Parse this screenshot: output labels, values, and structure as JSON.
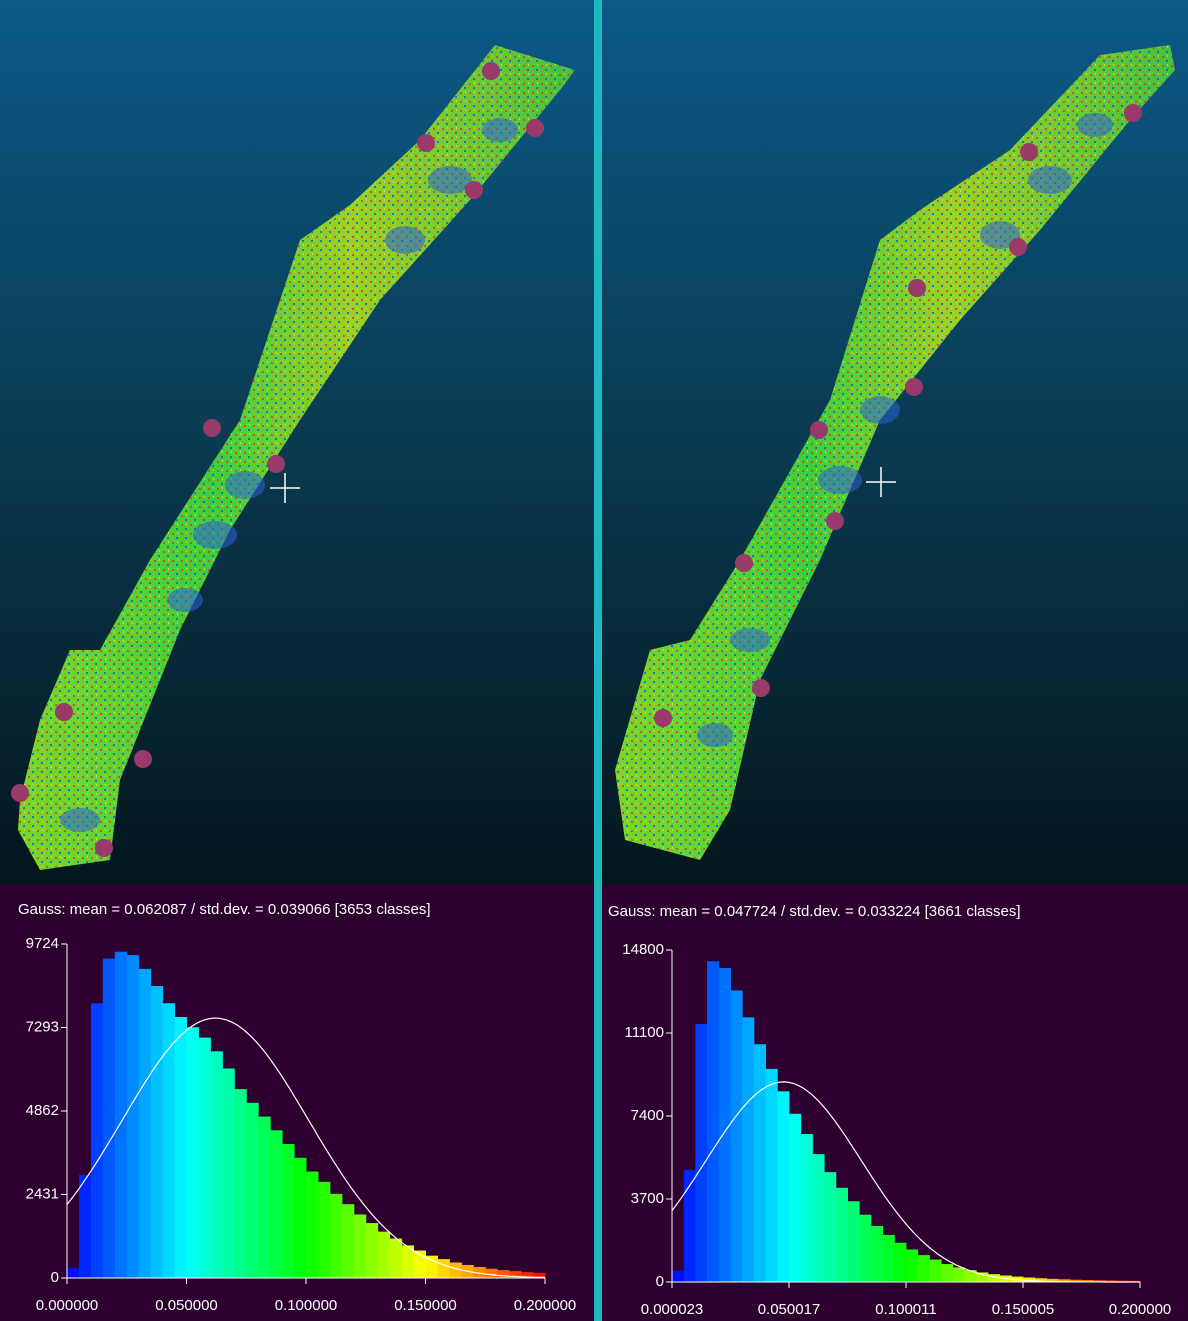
{
  "chart_data": [
    {
      "type": "histogram",
      "title": "Gauss: mean = 0.062087 / std.dev. = 0.039066 [3653 classes]",
      "gauss": {
        "mean": 0.062087,
        "std": 0.039066
      },
      "bins": [
        0,
        0.005,
        0.01,
        0.015,
        0.02,
        0.025,
        0.03,
        0.035,
        0.04,
        0.045,
        0.05,
        0.055,
        0.06,
        0.065,
        0.07,
        0.075,
        0.08,
        0.085,
        0.09,
        0.095,
        0.1,
        0.105,
        0.11,
        0.115,
        0.12,
        0.125,
        0.13,
        0.135,
        0.14,
        0.145,
        0.15,
        0.155,
        0.16,
        0.165,
        0.17,
        0.175,
        0.18,
        0.185,
        0.19,
        0.195,
        0.2
      ],
      "counts": [
        300,
        3000,
        8000,
        9300,
        9500,
        9400,
        9000,
        8500,
        8000,
        7600,
        7300,
        7000,
        6600,
        6100,
        5500,
        5100,
        4700,
        4300,
        3900,
        3500,
        3100,
        2800,
        2450,
        2150,
        1850,
        1600,
        1350,
        1150,
        950,
        800,
        650,
        550,
        450,
        380,
        320,
        270,
        230,
        200,
        170,
        150
      ],
      "xlim": [
        0,
        0.2
      ],
      "xticks": [
        {
          "value": 0,
          "label": "0.000000"
        },
        {
          "value": 0.05,
          "label": "0.050000"
        },
        {
          "value": 0.1,
          "label": "0.100000"
        },
        {
          "value": 0.15,
          "label": "0.150000"
        },
        {
          "value": 0.2,
          "label": "0.200000"
        }
      ],
      "ylim": [
        0,
        9724
      ],
      "yticks": [
        0,
        2431,
        4862,
        7293,
        9724
      ]
    },
    {
      "type": "histogram",
      "title": "Gauss: mean = 0.047724 / std.dev. = 0.033224 [3661 classes]",
      "gauss": {
        "mean": 0.047724,
        "std": 0.033224
      },
      "bins": [
        2.3e-05,
        0.005,
        0.01,
        0.015,
        0.02,
        0.025,
        0.03,
        0.035,
        0.04,
        0.045,
        0.05,
        0.055,
        0.06,
        0.065,
        0.07,
        0.075,
        0.08,
        0.085,
        0.09,
        0.095,
        0.1,
        0.105,
        0.11,
        0.115,
        0.12,
        0.125,
        0.13,
        0.135,
        0.14,
        0.145,
        0.15,
        0.155,
        0.16,
        0.165,
        0.17,
        0.175,
        0.18,
        0.185,
        0.19,
        0.195,
        0.2
      ],
      "counts": [
        500,
        5000,
        11500,
        14300,
        14000,
        13000,
        11800,
        10600,
        9500,
        8500,
        7500,
        6600,
        5700,
        4900,
        4200,
        3600,
        3000,
        2500,
        2100,
        1750,
        1450,
        1200,
        1000,
        800,
        650,
        530,
        430,
        350,
        290,
        240,
        200,
        170,
        140,
        120,
        100,
        90,
        80,
        70,
        60,
        50
      ],
      "xlim": [
        2.3e-05,
        0.2
      ],
      "xticks": [
        {
          "value": 2.3e-05,
          "label": "0.000023"
        },
        {
          "value": 0.050017,
          "label": "0.050017"
        },
        {
          "value": 0.100011,
          "label": "0.100011"
        },
        {
          "value": 0.150005,
          "label": "0.150005"
        },
        {
          "value": 0.2,
          "label": "0.200000"
        }
      ],
      "ylim": [
        0,
        14800
      ],
      "yticks": [
        0,
        3700,
        7400,
        11100,
        14800
      ]
    }
  ]
}
